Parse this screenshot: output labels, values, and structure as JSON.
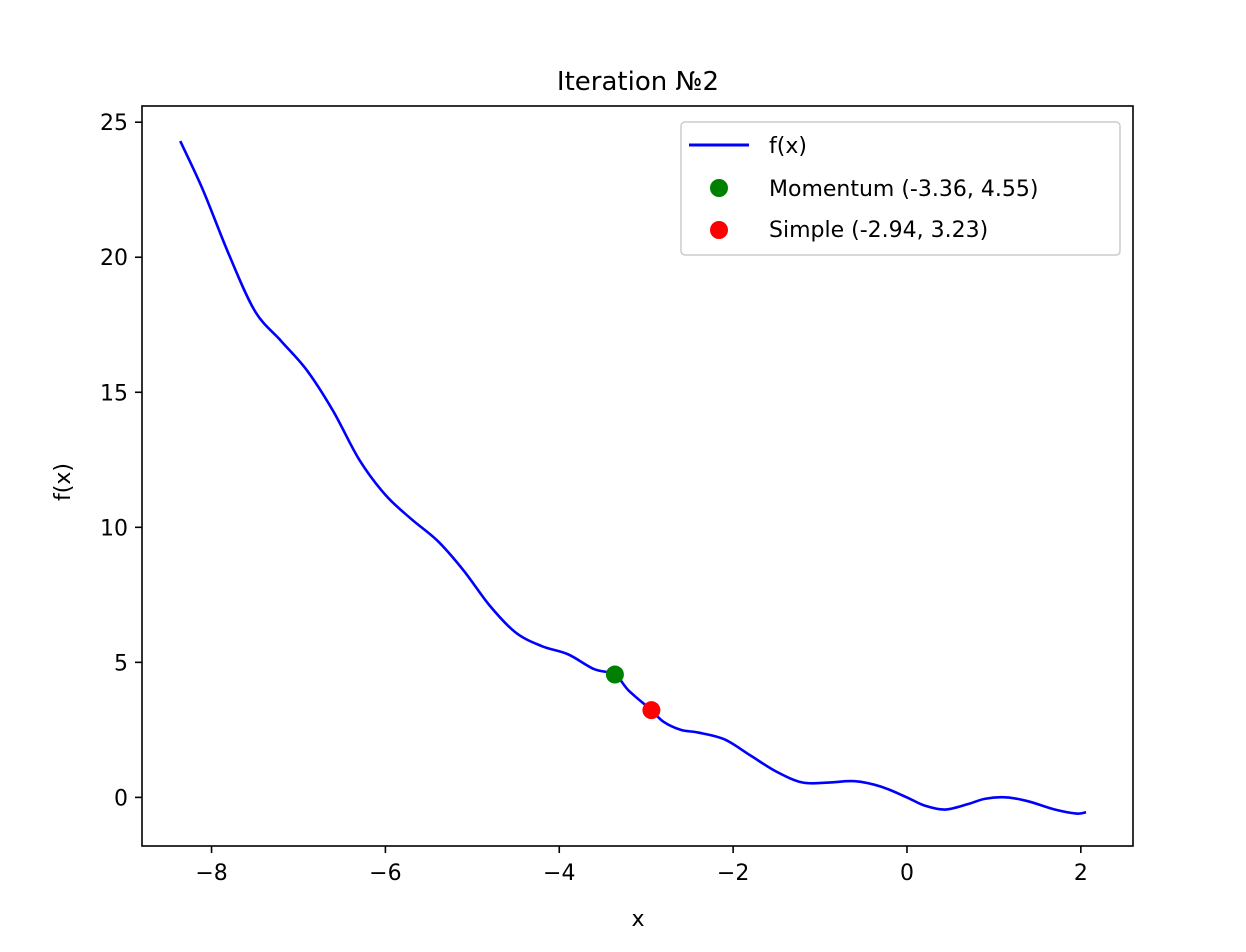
{
  "chart_data": {
    "type": "line",
    "title": "Iteration №2",
    "xlabel": "x",
    "ylabel": "f(x)",
    "xlim": [
      -8.8,
      2.6
    ],
    "ylim": [
      -1.8,
      25.6
    ],
    "xticks": [
      -8,
      -6,
      -4,
      -2,
      0,
      2
    ],
    "xtick_labels": [
      "−8",
      "−6",
      "−4",
      "−2",
      "0",
      "2"
    ],
    "yticks": [
      0,
      5,
      10,
      15,
      20,
      25
    ],
    "ytick_labels": [
      "0",
      "5",
      "10",
      "15",
      "20",
      "25"
    ],
    "grid": false,
    "legend_position": "top-right",
    "series": [
      {
        "name": "f(x)",
        "color": "#0000ff",
        "x": [
          -8.36,
          -8.1,
          -7.8,
          -7.5,
          -7.2,
          -6.9,
          -6.6,
          -6.3,
          -6.0,
          -5.7,
          -5.4,
          -5.1,
          -4.8,
          -4.5,
          -4.2,
          -3.9,
          -3.6,
          -3.36,
          -3.2,
          -2.94,
          -2.8,
          -2.6,
          -2.4,
          -2.1,
          -1.8,
          -1.5,
          -1.2,
          -0.9,
          -0.6,
          -0.3,
          0.0,
          0.2,
          0.44,
          0.7,
          0.9,
          1.15,
          1.4,
          1.7,
          1.95,
          2.06
        ],
        "y": [
          24.3,
          22.5,
          20.1,
          18.0,
          16.9,
          15.8,
          14.3,
          12.5,
          11.2,
          10.3,
          9.5,
          8.4,
          7.1,
          6.1,
          5.6,
          5.3,
          4.75,
          4.55,
          3.95,
          3.23,
          2.8,
          2.5,
          2.4,
          2.15,
          1.55,
          0.95,
          0.55,
          0.55,
          0.6,
          0.4,
          0.0,
          -0.3,
          -0.45,
          -0.25,
          -0.05,
          0.0,
          -0.15,
          -0.45,
          -0.6,
          -0.55
        ]
      },
      {
        "name": "Momentum (-3.36, 4.55)",
        "type": "scatter",
        "color": "#008000",
        "x": [
          -3.36
        ],
        "y": [
          4.55
        ]
      },
      {
        "name": "Simple (-2.94, 3.23)",
        "type": "scatter",
        "color": "#ff0000",
        "x": [
          -2.94
        ],
        "y": [
          3.23
        ]
      }
    ]
  }
}
